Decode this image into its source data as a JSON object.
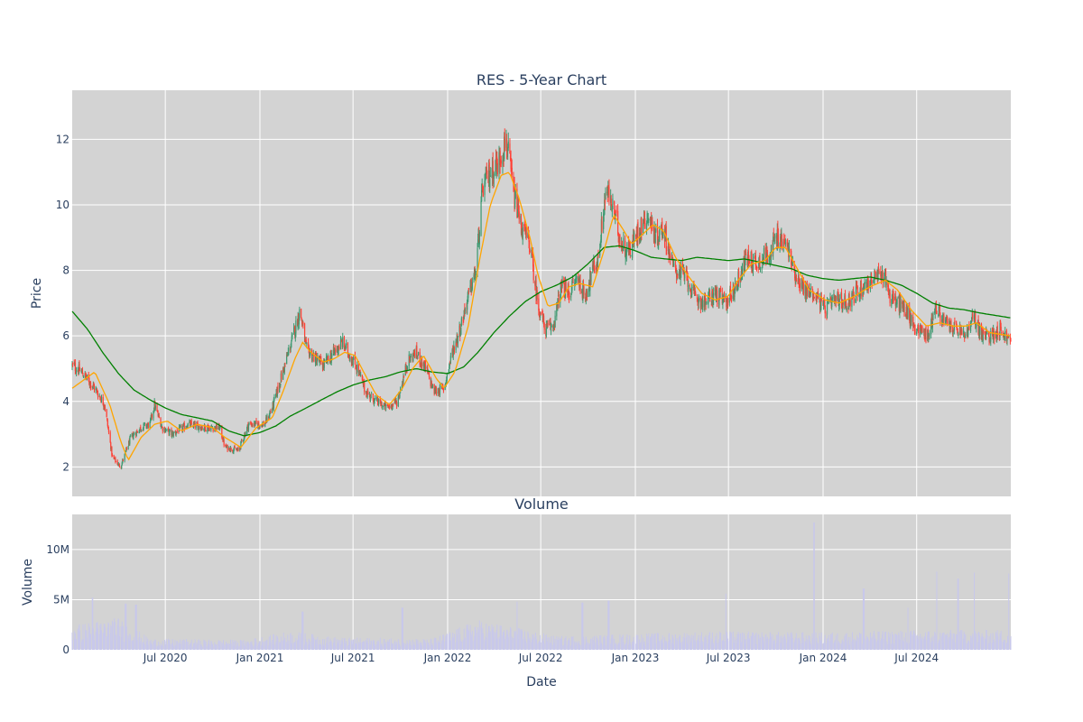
{
  "chart_data": [
    {
      "type": "candlestick",
      "title": "RES - 5-Year Chart",
      "ylabel": "Price",
      "ylim": [
        1.1,
        13.5
      ],
      "yticks": [
        2,
        4,
        6,
        8,
        10,
        12
      ],
      "xlim": [
        "2020-01-02",
        "2024-12-31"
      ],
      "grid": true,
      "legend": "none",
      "colors": {
        "increasing": "#3d9970",
        "decreasing": "#ff4136",
        "ma_short": "#ffa500",
        "ma_long": "#008000",
        "plot_bg": "#d3d3d3",
        "grid": "#ffffff"
      },
      "close_anchors": [
        [
          "2020-01-02",
          5.1
        ],
        [
          "2020-01-20",
          4.9
        ],
        [
          "2020-02-15",
          4.4
        ],
        [
          "2020-03-05",
          3.9
        ],
        [
          "2020-03-20",
          2.3
        ],
        [
          "2020-04-05",
          2.0
        ],
        [
          "2020-04-25",
          2.9
        ],
        [
          "2020-05-15",
          3.2
        ],
        [
          "2020-06-01",
          3.3
        ],
        [
          "2020-06-10",
          3.9
        ],
        [
          "2020-06-25",
          3.2
        ],
        [
          "2020-07-15",
          3.0
        ],
        [
          "2020-08-15",
          3.3
        ],
        [
          "2020-09-15",
          3.2
        ],
        [
          "2020-10-15",
          3.2
        ],
        [
          "2020-10-25",
          2.6
        ],
        [
          "2020-11-20",
          2.5
        ],
        [
          "2020-12-10",
          3.3
        ],
        [
          "2021-01-10",
          3.3
        ],
        [
          "2021-01-25",
          3.8
        ],
        [
          "2021-02-20",
          5.2
        ],
        [
          "2021-03-10",
          6.2
        ],
        [
          "2021-03-20",
          6.8
        ],
        [
          "2021-04-01",
          5.6
        ],
        [
          "2021-04-20",
          5.3
        ],
        [
          "2021-05-05",
          5.1
        ],
        [
          "2021-05-25",
          5.5
        ],
        [
          "2021-06-10",
          5.8
        ],
        [
          "2021-06-25",
          5.4
        ],
        [
          "2021-07-10",
          5.0
        ],
        [
          "2021-07-25",
          4.3
        ],
        [
          "2021-08-15",
          4.0
        ],
        [
          "2021-09-05",
          3.8
        ],
        [
          "2021-09-25",
          4.0
        ],
        [
          "2021-10-15",
          5.2
        ],
        [
          "2021-10-30",
          5.5
        ],
        [
          "2021-11-20",
          5.0
        ],
        [
          "2021-12-05",
          4.3
        ],
        [
          "2021-12-25",
          4.4
        ],
        [
          "2022-01-10",
          5.5
        ],
        [
          "2022-01-25",
          6.2
        ],
        [
          "2022-02-10",
          7.2
        ],
        [
          "2022-02-25",
          8.0
        ],
        [
          "2022-03-10",
          10.5
        ],
        [
          "2022-03-25",
          11.0
        ],
        [
          "2022-04-10",
          11.3
        ],
        [
          "2022-04-25",
          12.0
        ],
        [
          "2022-05-10",
          10.3
        ],
        [
          "2022-05-25",
          9.3
        ],
        [
          "2022-06-10",
          8.8
        ],
        [
          "2022-06-25",
          7.0
        ],
        [
          "2022-07-10",
          6.2
        ],
        [
          "2022-07-25",
          6.3
        ],
        [
          "2022-08-10",
          7.5
        ],
        [
          "2022-08-25",
          7.3
        ],
        [
          "2022-09-10",
          7.8
        ],
        [
          "2022-09-25",
          7.2
        ],
        [
          "2022-10-10",
          8.0
        ],
        [
          "2022-10-20",
          8.3
        ],
        [
          "2022-11-05",
          10.5
        ],
        [
          "2022-11-20",
          9.8
        ],
        [
          "2022-12-05",
          8.8
        ],
        [
          "2022-12-20",
          8.6
        ],
        [
          "2023-01-10",
          9.3
        ],
        [
          "2023-01-25",
          9.7
        ],
        [
          "2023-02-10",
          9.0
        ],
        [
          "2023-02-25",
          9.3
        ],
        [
          "2023-03-15",
          8.1
        ],
        [
          "2023-04-10",
          7.8
        ],
        [
          "2023-04-25",
          7.2
        ],
        [
          "2023-05-15",
          7.0
        ],
        [
          "2023-06-05",
          7.3
        ],
        [
          "2023-06-25",
          7.0
        ],
        [
          "2023-07-15",
          7.5
        ],
        [
          "2023-08-05",
          8.4
        ],
        [
          "2023-08-25",
          8.2
        ],
        [
          "2023-09-15",
          8.5
        ],
        [
          "2023-10-05",
          9.0
        ],
        [
          "2023-10-25",
          8.7
        ],
        [
          "2023-11-05",
          8.0
        ],
        [
          "2023-11-25",
          7.4
        ],
        [
          "2023-12-15",
          7.3
        ],
        [
          "2024-01-05",
          6.8
        ],
        [
          "2024-01-25",
          7.1
        ],
        [
          "2024-02-15",
          7.0
        ],
        [
          "2024-03-05",
          7.3
        ],
        [
          "2024-03-25",
          7.6
        ],
        [
          "2024-04-15",
          7.8
        ],
        [
          "2024-04-30",
          7.9
        ],
        [
          "2024-05-10",
          7.2
        ],
        [
          "2024-05-25",
          7.0
        ],
        [
          "2024-06-10",
          6.8
        ],
        [
          "2024-06-25",
          6.3
        ],
        [
          "2024-07-15",
          6.1
        ],
        [
          "2024-07-25",
          6.0
        ],
        [
          "2024-08-05",
          6.9
        ],
        [
          "2024-08-25",
          6.4
        ],
        [
          "2024-09-15",
          6.2
        ],
        [
          "2024-10-05",
          6.0
        ],
        [
          "2024-10-20",
          6.6
        ],
        [
          "2024-11-05",
          6.0
        ],
        [
          "2024-11-20",
          6.0
        ],
        [
          "2024-12-10",
          6.2
        ],
        [
          "2024-12-31",
          5.8
        ]
      ],
      "ma_short_anchors": [
        [
          "2020-01-02",
          4.4
        ],
        [
          "2020-02-15",
          4.9
        ],
        [
          "2020-03-15",
          3.9
        ],
        [
          "2020-04-05",
          2.8
        ],
        [
          "2020-04-20",
          2.2
        ],
        [
          "2020-05-15",
          2.9
        ],
        [
          "2020-06-10",
          3.3
        ],
        [
          "2020-07-05",
          3.4
        ],
        [
          "2020-08-01",
          3.1
        ],
        [
          "2020-09-01",
          3.3
        ],
        [
          "2020-10-01",
          3.2
        ],
        [
          "2020-10-25",
          2.9
        ],
        [
          "2020-11-25",
          2.6
        ],
        [
          "2020-12-25",
          3.2
        ],
        [
          "2021-01-25",
          3.5
        ],
        [
          "2021-02-15",
          4.3
        ],
        [
          "2021-03-10",
          5.3
        ],
        [
          "2021-03-25",
          5.8
        ],
        [
          "2021-04-10",
          5.5
        ],
        [
          "2021-05-05",
          5.2
        ],
        [
          "2021-05-25",
          5.3
        ],
        [
          "2021-06-15",
          5.5
        ],
        [
          "2021-07-05",
          5.4
        ],
        [
          "2021-07-25",
          4.8
        ],
        [
          "2021-08-15",
          4.2
        ],
        [
          "2021-09-10",
          3.9
        ],
        [
          "2021-10-05",
          4.4
        ],
        [
          "2021-10-25",
          5.0
        ],
        [
          "2021-11-15",
          5.4
        ],
        [
          "2021-12-10",
          4.7
        ],
        [
          "2021-12-25",
          4.4
        ],
        [
          "2022-01-15",
          4.9
        ],
        [
          "2022-02-10",
          6.3
        ],
        [
          "2022-03-05",
          8.4
        ],
        [
          "2022-03-25",
          10.0
        ],
        [
          "2022-04-15",
          10.9
        ],
        [
          "2022-05-01",
          11.0
        ],
        [
          "2022-05-20",
          10.2
        ],
        [
          "2022-06-10",
          9.0
        ],
        [
          "2022-06-25",
          7.9
        ],
        [
          "2022-07-15",
          6.9
        ],
        [
          "2022-08-05",
          7.0
        ],
        [
          "2022-08-25",
          7.5
        ],
        [
          "2022-09-15",
          7.6
        ],
        [
          "2022-10-10",
          7.5
        ],
        [
          "2022-11-01",
          8.6
        ],
        [
          "2022-11-20",
          9.7
        ],
        [
          "2022-12-10",
          9.2
        ],
        [
          "2022-12-25",
          8.8
        ],
        [
          "2023-01-15",
          9.1
        ],
        [
          "2023-02-05",
          9.4
        ],
        [
          "2023-02-25",
          9.2
        ],
        [
          "2023-03-20",
          8.4
        ],
        [
          "2023-04-15",
          7.8
        ],
        [
          "2023-05-10",
          7.3
        ],
        [
          "2023-06-05",
          7.1
        ],
        [
          "2023-06-30",
          7.2
        ],
        [
          "2023-07-20",
          7.7
        ],
        [
          "2023-08-15",
          8.2
        ],
        [
          "2023-09-10",
          8.3
        ],
        [
          "2023-10-01",
          8.7
        ],
        [
          "2023-10-20",
          8.7
        ],
        [
          "2023-11-10",
          8.1
        ],
        [
          "2023-12-05",
          7.4
        ],
        [
          "2024-01-05",
          7.1
        ],
        [
          "2024-02-01",
          7.0
        ],
        [
          "2024-03-01",
          7.2
        ],
        [
          "2024-04-01",
          7.5
        ],
        [
          "2024-05-01",
          7.7
        ],
        [
          "2024-05-25",
          7.4
        ],
        [
          "2024-06-20",
          6.8
        ],
        [
          "2024-07-20",
          6.3
        ],
        [
          "2024-08-15",
          6.4
        ],
        [
          "2024-09-10",
          6.3
        ],
        [
          "2024-10-05",
          6.3
        ],
        [
          "2024-10-25",
          6.4
        ],
        [
          "2024-11-20",
          6.1
        ],
        [
          "2024-12-31",
          6.0
        ]
      ],
      "ma_long_anchors": [
        [
          "2020-01-02",
          6.75
        ],
        [
          "2020-02-01",
          6.2
        ],
        [
          "2020-03-01",
          5.5
        ],
        [
          "2020-04-01",
          4.85
        ],
        [
          "2020-05-01",
          4.35
        ],
        [
          "2020-06-01",
          4.05
        ],
        [
          "2020-07-01",
          3.8
        ],
        [
          "2020-08-01",
          3.6
        ],
        [
          "2020-09-01",
          3.5
        ],
        [
          "2020-10-01",
          3.4
        ],
        [
          "2020-11-01",
          3.1
        ],
        [
          "2020-12-01",
          2.95
        ],
        [
          "2021-01-01",
          3.05
        ],
        [
          "2021-02-01",
          3.25
        ],
        [
          "2021-03-01",
          3.55
        ],
        [
          "2021-04-01",
          3.8
        ],
        [
          "2021-05-01",
          4.05
        ],
        [
          "2021-06-01",
          4.3
        ],
        [
          "2021-07-01",
          4.5
        ],
        [
          "2021-08-01",
          4.65
        ],
        [
          "2021-09-01",
          4.75
        ],
        [
          "2021-10-01",
          4.9
        ],
        [
          "2021-11-01",
          5.0
        ],
        [
          "2021-12-01",
          4.9
        ],
        [
          "2022-01-01",
          4.85
        ],
        [
          "2022-02-01",
          5.05
        ],
        [
          "2022-03-01",
          5.5
        ],
        [
          "2022-04-01",
          6.1
        ],
        [
          "2022-05-01",
          6.6
        ],
        [
          "2022-06-01",
          7.05
        ],
        [
          "2022-07-01",
          7.35
        ],
        [
          "2022-08-01",
          7.55
        ],
        [
          "2022-09-01",
          7.8
        ],
        [
          "2022-10-01",
          8.2
        ],
        [
          "2022-11-01",
          8.7
        ],
        [
          "2022-12-01",
          8.75
        ],
        [
          "2023-01-01",
          8.6
        ],
        [
          "2023-02-01",
          8.4
        ],
        [
          "2023-03-01",
          8.35
        ],
        [
          "2023-04-01",
          8.3
        ],
        [
          "2023-05-01",
          8.4
        ],
        [
          "2023-06-01",
          8.35
        ],
        [
          "2023-07-01",
          8.3
        ],
        [
          "2023-08-01",
          8.35
        ],
        [
          "2023-09-01",
          8.25
        ],
        [
          "2023-10-01",
          8.15
        ],
        [
          "2023-11-01",
          8.05
        ],
        [
          "2023-12-01",
          7.85
        ],
        [
          "2024-01-01",
          7.75
        ],
        [
          "2024-02-01",
          7.7
        ],
        [
          "2024-03-01",
          7.75
        ],
        [
          "2024-04-01",
          7.8
        ],
        [
          "2024-05-01",
          7.7
        ],
        [
          "2024-06-01",
          7.55
        ],
        [
          "2024-07-01",
          7.3
        ],
        [
          "2024-08-01",
          7.0
        ],
        [
          "2024-09-01",
          6.85
        ],
        [
          "2024-10-01",
          6.8
        ],
        [
          "2024-11-01",
          6.7
        ],
        [
          "2024-12-31",
          6.55
        ]
      ]
    },
    {
      "type": "bar",
      "title": "Volume",
      "xlabel": "Date",
      "ylabel": "Volume",
      "ylim": [
        0,
        13500000
      ],
      "yticks": [
        0,
        5000000,
        10000000
      ],
      "ytick_labels": [
        "0",
        "5M",
        "10M"
      ],
      "xlim": [
        "2020-01-02",
        "2024-12-31"
      ],
      "xticks": [
        "2020-07-01",
        "2021-01-01",
        "2021-07-01",
        "2022-01-01",
        "2022-07-01",
        "2023-01-01",
        "2023-07-01",
        "2024-01-01",
        "2024-07-01"
      ],
      "xtick_labels": [
        "Jul 2020",
        "Jan 2021",
        "Jul 2021",
        "Jan 2022",
        "Jul 2022",
        "Jan 2023",
        "Jul 2023",
        "Jan 2024",
        "Jul 2024"
      ],
      "colors": {
        "bars": "#c8c8eb"
      },
      "volume_base_anchors": [
        [
          "2020-01-02",
          2000000
        ],
        [
          "2020-04-01",
          2600000
        ],
        [
          "2020-06-01",
          900000
        ],
        [
          "2020-12-01",
          800000
        ],
        [
          "2021-03-01",
          1500000
        ],
        [
          "2021-06-01",
          1000000
        ],
        [
          "2021-12-01",
          900000
        ],
        [
          "2022-03-01",
          2400000
        ],
        [
          "2022-05-01",
          1900000
        ],
        [
          "2022-08-01",
          1100000
        ],
        [
          "2023-01-01",
          1300000
        ],
        [
          "2023-06-01",
          1500000
        ],
        [
          "2024-01-01",
          1400000
        ],
        [
          "2024-07-01",
          1600000
        ],
        [
          "2024-12-31",
          1600000
        ]
      ],
      "volume_spikes": [
        [
          "2020-02-10",
          5200000
        ],
        [
          "2020-04-15",
          4600000
        ],
        [
          "2020-05-05",
          4500000
        ],
        [
          "2021-03-25",
          3800000
        ],
        [
          "2021-10-05",
          4200000
        ],
        [
          "2022-05-15",
          4800000
        ],
        [
          "2022-09-20",
          4700000
        ],
        [
          "2022-11-10",
          4900000
        ],
        [
          "2023-06-25",
          5600000
        ],
        [
          "2023-12-15",
          12700000
        ],
        [
          "2024-03-20",
          6100000
        ],
        [
          "2024-06-15",
          4200000
        ],
        [
          "2024-08-10",
          7800000
        ],
        [
          "2024-09-20",
          7100000
        ],
        [
          "2024-10-20",
          7700000
        ],
        [
          "2024-12-28",
          7600000
        ]
      ]
    }
  ]
}
